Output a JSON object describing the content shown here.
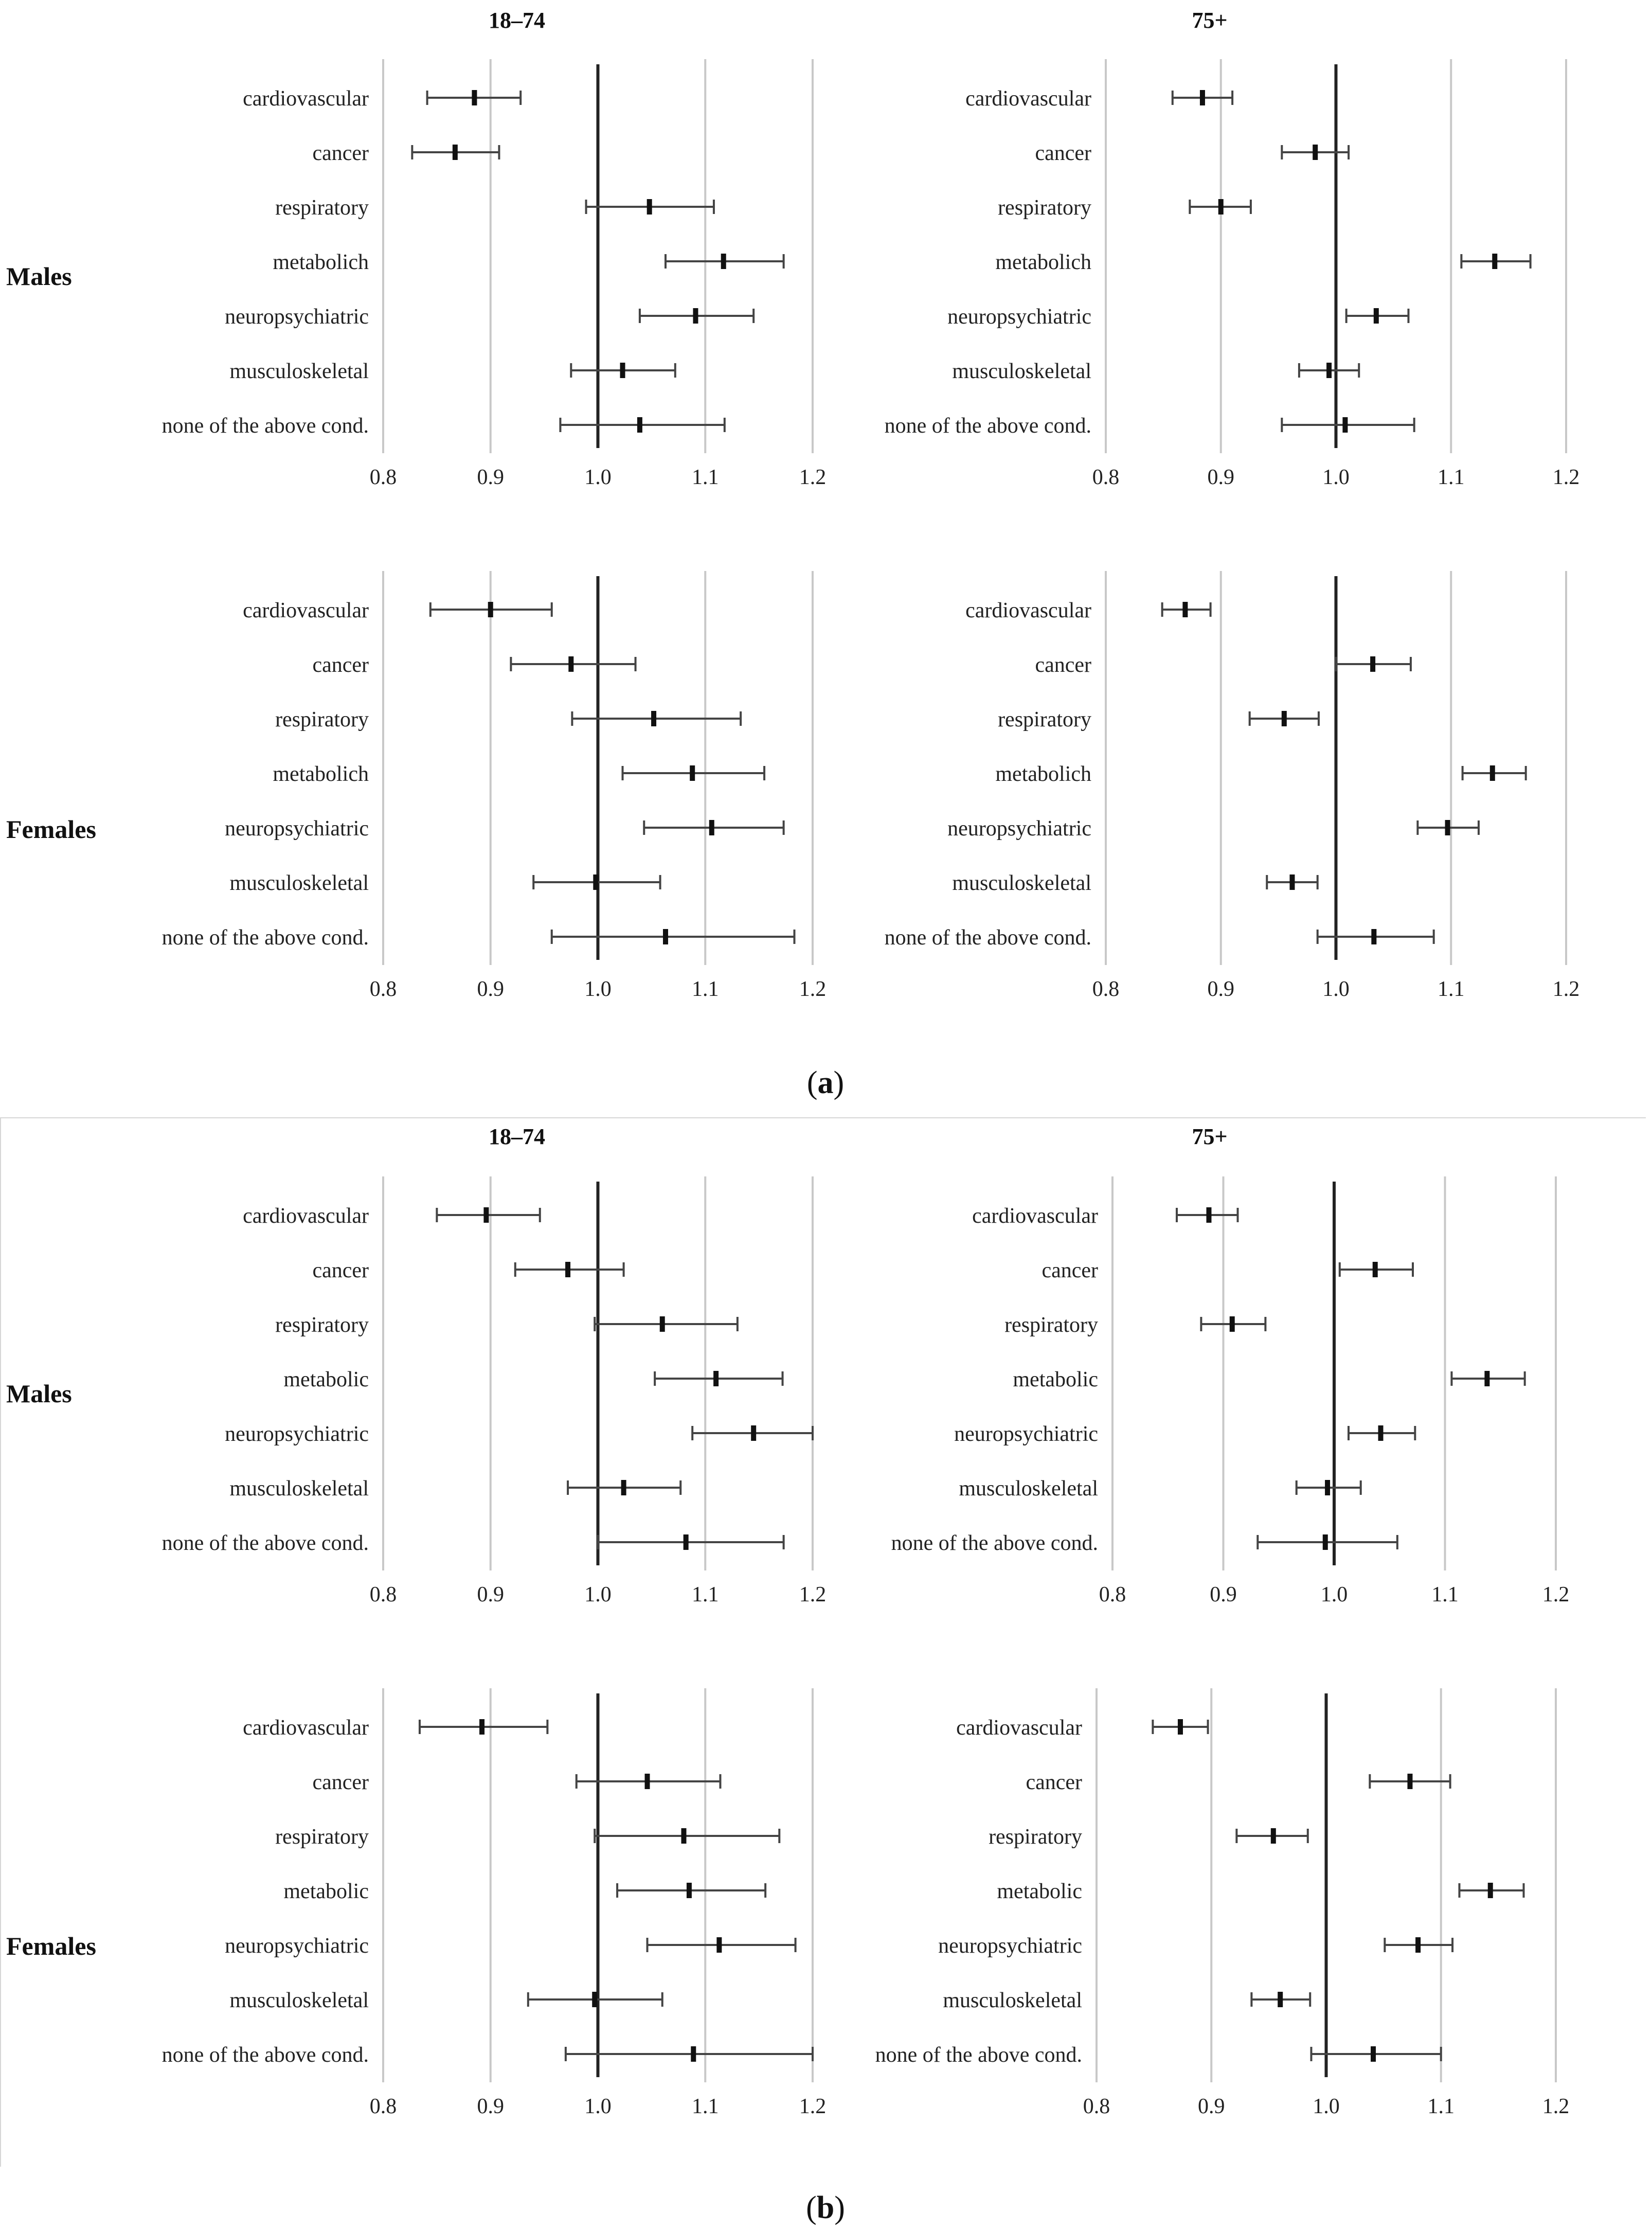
{
  "figure": {
    "columns": [
      "18–74",
      "75+"
    ],
    "rows": [
      "Males",
      "Females"
    ],
    "captions": [
      {
        "paren_open": "(",
        "letter": "a",
        "paren_close": ")"
      },
      {
        "paren_open": "(",
        "letter": "b",
        "paren_close": ")"
      }
    ],
    "colors": {
      "grid": "#c8c8c8",
      "reference": "#222222",
      "marker": "#111111",
      "whisker": "#444444"
    }
  },
  "chart_data": [
    {
      "type": "forest",
      "section": "a",
      "sex": "Males",
      "age": "18–74",
      "categories": [
        "cardiovascular",
        "cancer",
        "respiratory",
        "metabolich",
        "neuropsychiatric",
        "musculoskeletal",
        "none of the above cond."
      ],
      "estimate": [
        0.885,
        0.867,
        1.048,
        1.117,
        1.091,
        1.023,
        1.039
      ],
      "ci_low": [
        0.841,
        0.827,
        0.989,
        1.063,
        1.039,
        0.975,
        0.965
      ],
      "ci_high": [
        0.928,
        0.908,
        1.108,
        1.173,
        1.145,
        1.072,
        1.118
      ],
      "xlim": [
        0.8,
        1.2
      ],
      "ticks": [
        "0.8",
        "0.9",
        "1.0",
        "1.1",
        "1.2"
      ],
      "reference": 1.0
    },
    {
      "type": "forest",
      "section": "a",
      "sex": "Males",
      "age": "75+",
      "categories": [
        "cardiovascular",
        "cancer",
        "respiratory",
        "metabolich",
        "neuropsychiatric",
        "musculoskeletal",
        "none of the above cond."
      ],
      "estimate": [
        0.884,
        0.982,
        0.9,
        1.138,
        1.035,
        0.994,
        1.008
      ],
      "ci_low": [
        0.858,
        0.953,
        0.873,
        1.109,
        1.009,
        0.968,
        0.953
      ],
      "ci_high": [
        0.91,
        1.011,
        0.926,
        1.169,
        1.063,
        1.02,
        1.068
      ],
      "xlim": [
        0.8,
        1.2
      ],
      "ticks": [
        "0.8",
        "0.9",
        "1.0",
        "1.1",
        "1.2"
      ],
      "reference": 1.0
    },
    {
      "type": "forest",
      "section": "a",
      "sex": "Females",
      "age": "18–74",
      "categories": [
        "cardiovascular",
        "cancer",
        "respiratory",
        "metabolich",
        "neuropsychiatric",
        "musculoskeletal",
        "none of the above cond."
      ],
      "estimate": [
        0.9,
        0.975,
        1.052,
        1.088,
        1.106,
        0.998,
        1.063
      ],
      "ci_low": [
        0.844,
        0.919,
        0.976,
        1.023,
        1.043,
        0.94,
        0.957
      ],
      "ci_high": [
        0.957,
        1.035,
        1.133,
        1.155,
        1.173,
        1.058,
        1.183
      ],
      "xlim": [
        0.8,
        1.2
      ],
      "ticks": [
        "0.8",
        "0.9",
        "1.0",
        "1.1",
        "1.2"
      ],
      "reference": 1.0
    },
    {
      "type": "forest",
      "section": "a",
      "sex": "Females",
      "age": "75+",
      "categories": [
        "cardiovascular",
        "cancer",
        "respiratory",
        "metabolich",
        "neuropsychiatric",
        "musculoskeletal",
        "none of the above cond."
      ],
      "estimate": [
        0.869,
        1.032,
        0.955,
        1.136,
        1.097,
        0.962,
        1.033
      ],
      "ci_low": [
        0.849,
        1.0,
        0.925,
        1.11,
        1.071,
        0.94,
        0.984
      ],
      "ci_high": [
        0.891,
        1.065,
        0.985,
        1.165,
        1.124,
        0.984,
        1.085
      ],
      "xlim": [
        0.8,
        1.2
      ],
      "ticks": [
        "0.8",
        "0.9",
        "1.0",
        "1.1",
        "1.2"
      ],
      "reference": 1.0
    },
    {
      "type": "forest",
      "section": "b",
      "sex": "Males",
      "age": "18–74",
      "categories": [
        "cardiovascular",
        "cancer",
        "respiratory",
        "metabolic",
        "neuropsychiatric",
        "musculoskeletal",
        "none of the above cond."
      ],
      "estimate": [
        0.896,
        0.972,
        1.06,
        1.11,
        1.145,
        1.024,
        1.082
      ],
      "ci_low": [
        0.85,
        0.923,
        0.997,
        1.053,
        1.088,
        0.972,
        1.0
      ],
      "ci_high": [
        0.946,
        1.024,
        1.13,
        1.172,
        1.2,
        1.077,
        1.173
      ],
      "xlim": [
        0.8,
        1.2
      ],
      "ticks": [
        "0.8",
        "0.9",
        "1.0",
        "1.1",
        "1.2"
      ],
      "reference": 1.0
    },
    {
      "type": "forest",
      "section": "b",
      "sex": "Males",
      "age": "75+",
      "categories": [
        "cardiovascular",
        "cancer",
        "respiratory",
        "metabolic",
        "neuropsychiatric",
        "musculoskeletal",
        "none of the above cond."
      ],
      "estimate": [
        0.887,
        1.037,
        0.908,
        1.138,
        1.042,
        0.994,
        0.992
      ],
      "ci_low": [
        0.858,
        1.005,
        0.88,
        1.106,
        1.013,
        0.966,
        0.931
      ],
      "ci_high": [
        0.913,
        1.071,
        0.938,
        1.172,
        1.073,
        1.024,
        1.057
      ],
      "xlim": [
        0.8,
        1.2
      ],
      "ticks": [
        "0.8",
        "0.9",
        "1.0",
        "1.1",
        "1.2"
      ],
      "reference": 1.0
    },
    {
      "type": "forest",
      "section": "b",
      "sex": "Females",
      "age": "18–74",
      "categories": [
        "cardiovascular",
        "cancer",
        "respiratory",
        "metabolic",
        "neuropsychiatric",
        "musculoskeletal",
        "none of the above cond."
      ],
      "estimate": [
        0.892,
        1.046,
        1.08,
        1.085,
        1.113,
        0.997,
        1.089
      ],
      "ci_low": [
        0.834,
        0.98,
        0.997,
        1.018,
        1.046,
        0.935,
        0.97
      ],
      "ci_high": [
        0.953,
        1.114,
        1.169,
        1.156,
        1.184,
        1.06,
        1.2
      ],
      "xlim": [
        0.8,
        1.2
      ],
      "ticks": [
        "0.8",
        "0.9",
        "1.0",
        "1.1",
        "1.2"
      ],
      "reference": 1.0
    },
    {
      "type": "forest",
      "section": "b",
      "sex": "Females",
      "age": "75+",
      "categories": [
        "cardiovascular",
        "cancer",
        "respiratory",
        "metabolic",
        "neuropsychiatric",
        "musculoskeletal",
        "none of the above cond."
      ],
      "estimate": [
        0.873,
        1.073,
        0.954,
        1.143,
        1.08,
        0.96,
        1.041
      ],
      "ci_low": [
        0.849,
        1.038,
        0.922,
        1.116,
        1.051,
        0.935,
        0.987
      ],
      "ci_high": [
        0.897,
        1.108,
        0.984,
        1.172,
        1.11,
        0.986,
        1.1
      ],
      "xlim": [
        0.8,
        1.2
      ],
      "ticks": [
        "0.8",
        "0.9",
        "1.0",
        "1.1",
        "1.2"
      ],
      "reference": 1.0
    }
  ]
}
